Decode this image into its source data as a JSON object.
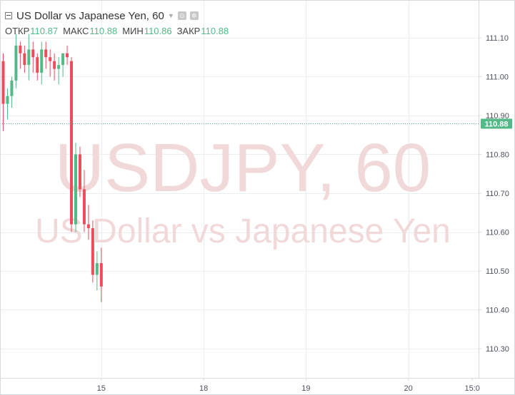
{
  "legend": {
    "title": "US Dollar vs Japanese Yen, 60",
    "icons": [
      "settings-icon",
      "gear-icon"
    ],
    "ohlc": [
      {
        "label": "ОТКР",
        "value": "110.87"
      },
      {
        "label": "МАКС",
        "value": "110.88"
      },
      {
        "label": "МИН",
        "value": "110.86"
      },
      {
        "label": "ЗАКР",
        "value": "110.88"
      }
    ]
  },
  "watermark": {
    "symbol": "USDJPY, 60",
    "name": "US Dollar vs Japanese Yen"
  },
  "colors": {
    "up": "#53b987",
    "down": "#eb4d5c",
    "price_line": "#53b987",
    "grid": "#e9eef2",
    "axis_text": "#4c525e",
    "watermark": "#f2d9d9"
  },
  "chart_data": {
    "type": "candlestick",
    "symbol": "USDJPY",
    "interval": "60",
    "last_price": "110.88",
    "y_range": [
      110.22,
      111.2
    ],
    "y_ticks": [
      "111.10",
      "111.00",
      "110.90",
      "110.80",
      "110.70",
      "110.60",
      "110.50",
      "110.40",
      "110.30"
    ],
    "x_ticks": [
      {
        "label": "15",
        "bar": 23
      },
      {
        "label": "18",
        "bar": 47
      },
      {
        "label": "19",
        "bar": 71
      },
      {
        "label": "20",
        "bar": 95
      },
      {
        "label": "15:0",
        "bar": 110
      }
    ],
    "grid": true,
    "candles": [
      [
        111.04,
        111.06,
        110.86,
        110.93
      ],
      [
        110.93,
        110.97,
        110.89,
        110.95
      ],
      [
        110.95,
        111.0,
        110.92,
        110.99
      ],
      [
        110.99,
        111.11,
        110.97,
        111.08
      ],
      [
        111.08,
        111.09,
        111.02,
        111.06
      ],
      [
        111.06,
        111.08,
        111.01,
        111.03
      ],
      [
        111.03,
        111.11,
        110.99,
        111.07
      ],
      [
        111.07,
        111.09,
        111.01,
        111.05
      ],
      [
        111.05,
        111.06,
        110.99,
        111.01
      ],
      [
        111.01,
        111.09,
        110.98,
        111.07
      ],
      [
        111.07,
        111.09,
        111.02,
        111.05
      ],
      [
        111.05,
        111.07,
        111.0,
        111.04
      ],
      [
        111.04,
        111.06,
        110.99,
        111.02
      ],
      [
        111.02,
        111.05,
        110.98,
        111.03
      ],
      [
        111.03,
        111.06,
        111.0,
        111.06
      ],
      [
        111.06,
        111.08,
        111.03,
        111.05
      ],
      [
        111.04,
        111.05,
        110.6,
        110.62
      ],
      [
        110.62,
        110.83,
        110.6,
        110.8
      ],
      [
        110.8,
        110.82,
        110.69,
        110.71
      ],
      [
        110.71,
        110.76,
        110.6,
        110.62
      ],
      [
        110.62,
        110.67,
        110.58,
        110.61
      ],
      [
        110.61,
        110.63,
        110.47,
        110.49
      ],
      [
        110.49,
        110.55,
        110.45,
        110.52
      ],
      [
        110.52,
        110.56,
        110.42,
        110.46
      ]
    ]
  }
}
